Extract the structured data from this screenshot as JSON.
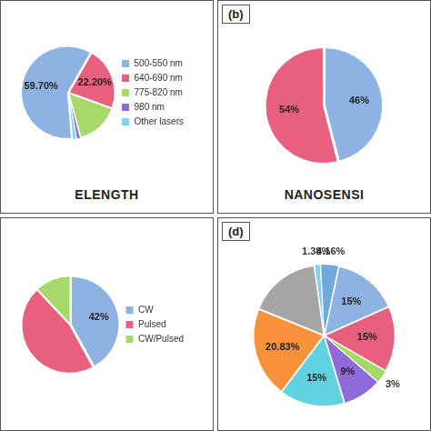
{
  "chart_data": [
    {
      "type": "pie",
      "title": "ELENGTH",
      "categories": [
        "500-550 nm",
        "640-690 nm",
        "775-820 nm",
        "980 nm",
        "Other lasers"
      ],
      "values": [
        59.7,
        22.2,
        15.3,
        1.4,
        1.4
      ],
      "value_labels": [
        "59.70%",
        "22.20%",
        null,
        null,
        null
      ],
      "colors": [
        "#8db3e2",
        "#e8607e",
        "#a6d96a",
        "#8e6bd8",
        "#7fd1ef"
      ],
      "legend": "right",
      "data_labels": true
    },
    {
      "type": "pie",
      "title": "NANOSENSI",
      "annotations": [
        "(b)"
      ],
      "values": [
        46,
        54
      ],
      "value_labels": [
        "46%",
        "54%"
      ],
      "colors": [
        "#8db3e2",
        "#e8607e"
      ],
      "data_labels": true
    },
    {
      "type": "pie",
      "categories": [
        "CW",
        "Pulsed",
        "CW/Pulsed"
      ],
      "values": [
        42,
        46,
        12
      ],
      "value_labels": [
        "42%",
        null,
        null
      ],
      "colors": [
        "#8db3e2",
        "#e8607e",
        "#a6d96a"
      ],
      "legend": "right",
      "data_labels": true
    },
    {
      "type": "pie",
      "annotations": [
        "(d)"
      ],
      "values": [
        1.38,
        4.16,
        15,
        15,
        3,
        9,
        15,
        20.83,
        16.63
      ],
      "value_labels": [
        "1.38%",
        "4.16%",
        "15%",
        "15%",
        "3%",
        "9%",
        "15%",
        "20.83%",
        null
      ],
      "colors": [
        "#7fd1ef",
        "#6fa8dc",
        "#8db3e2",
        "#e8607e",
        "#a6d96a",
        "#8e6bd8",
        "#5fd3e0",
        "#f7923a",
        "#a5a5a5"
      ],
      "data_labels": true
    }
  ]
}
